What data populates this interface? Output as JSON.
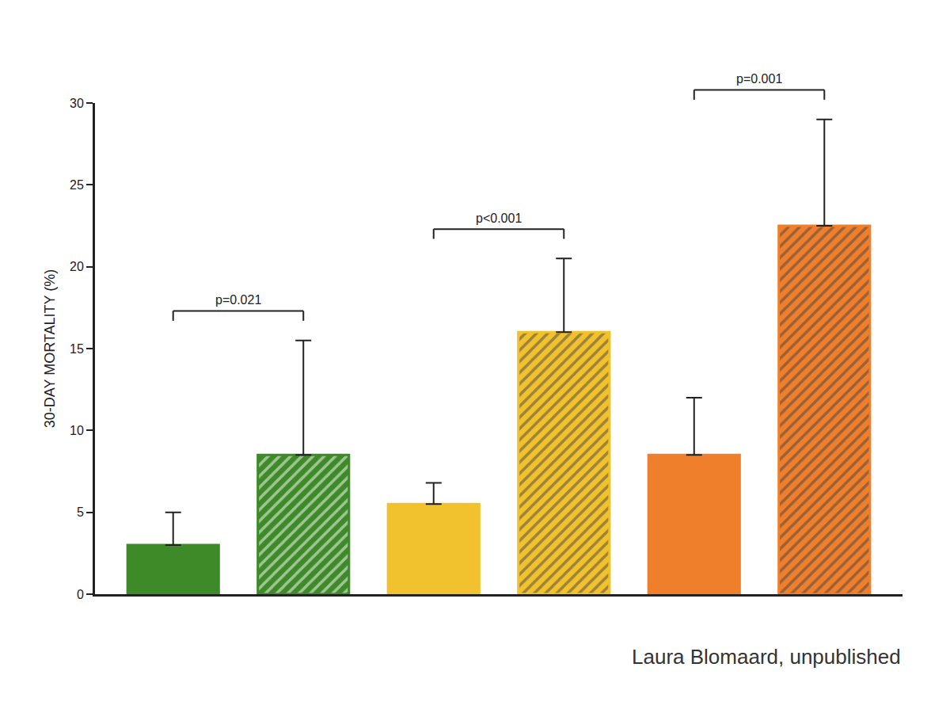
{
  "chart_data": {
    "type": "bar",
    "y_label": "30-DAY MORTALITY (%)",
    "categories": [
      null,
      null,
      null,
      null,
      null,
      null
    ],
    "values": [
      3.0,
      8.5,
      5.5,
      16.0,
      8.5,
      22.5
    ],
    "error_plus": [
      2.0,
      7.0,
      1.3,
      4.5,
      3.5,
      6.5
    ],
    "colors": [
      "#3e8a28",
      "#3e8a28",
      "#f2c22e",
      "#f2c22e",
      "#f07f2c",
      "#f07f2c"
    ],
    "ylim": [
      0,
      30
    ],
    "yticks": [
      0,
      5,
      10,
      15,
      20,
      25,
      30
    ],
    "grid": false,
    "tick_labels": "y",
    "annotations": [
      {
        "text": "p=0.021",
        "between": [
          0,
          1
        ]
      },
      {
        "text": "p<0.001",
        "between": [
          2,
          3
        ]
      },
      {
        "text": "p=0.001",
        "between": [
          4,
          5
        ]
      }
    ],
    "source": "Laura Blomaard, unpublished"
  }
}
